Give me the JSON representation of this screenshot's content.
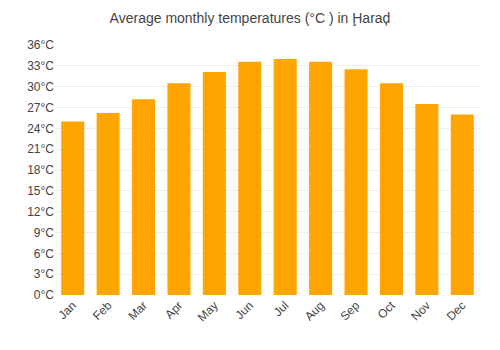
{
  "chart_data": {
    "type": "bar",
    "title": "Average monthly temperatures (°C ) in Ḩaraḑ",
    "categories": [
      "Jan",
      "Feb",
      "Mar",
      "Apr",
      "May",
      "Jun",
      "Jul",
      "Aug",
      "Sep",
      "Oct",
      "Nov",
      "Dec"
    ],
    "values": [
      25.0,
      26.2,
      28.2,
      30.5,
      32.1,
      33.6,
      34.0,
      33.6,
      32.5,
      30.5,
      27.5,
      26.0
    ],
    "color": "#FFA500",
    "ylim": [
      0,
      36
    ],
    "yticks": [
      {
        "value": 0,
        "label": "0°C"
      },
      {
        "value": 3,
        "label": "3°C"
      },
      {
        "value": 6,
        "label": "6°C"
      },
      {
        "value": 9,
        "label": "9°C"
      },
      {
        "value": 12,
        "label": "12°C"
      },
      {
        "value": 15,
        "label": "15°C"
      },
      {
        "value": 18,
        "label": "18°C"
      },
      {
        "value": 21,
        "label": "21°C"
      },
      {
        "value": 24,
        "label": "24°C"
      },
      {
        "value": 27,
        "label": "27°C"
      },
      {
        "value": 30,
        "label": "30°C"
      },
      {
        "value": 33,
        "label": "33°C"
      },
      {
        "value": 36,
        "label": "36°C"
      }
    ],
    "grid": true
  }
}
